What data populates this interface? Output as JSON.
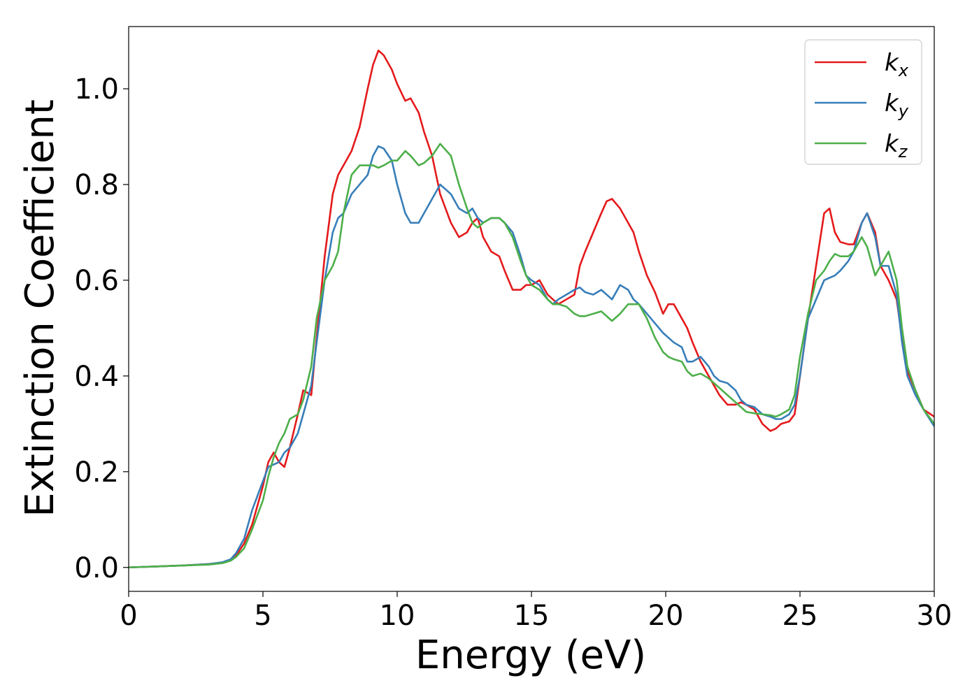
{
  "chart_data": {
    "type": "line",
    "xlabel": "Energy (eV)",
    "ylabel": "Extinction Coefficient",
    "xlim": [
      0,
      30
    ],
    "ylim": [
      -0.05,
      1.13
    ],
    "xticks": [
      0,
      5,
      10,
      15,
      20,
      25,
      30
    ],
    "yticks": [
      0.0,
      0.2,
      0.4,
      0.6,
      0.8,
      1.0
    ],
    "xtick_labels": [
      "0",
      "5",
      "10",
      "15",
      "20",
      "25",
      "30"
    ],
    "ytick_labels": [
      "0.0",
      "0.2",
      "0.4",
      "0.6",
      "0.8",
      "1.0"
    ],
    "grid": false,
    "legend_position": "top-right",
    "series": [
      {
        "name": "k",
        "subscript": "x",
        "color": "#e41a1c",
        "x": [
          0,
          1,
          2,
          3,
          3.5,
          3.8,
          4.0,
          4.3,
          4.6,
          5.0,
          5.2,
          5.4,
          5.6,
          5.8,
          6.0,
          6.3,
          6.5,
          6.8,
          7.0,
          7.3,
          7.6,
          7.8,
          8.0,
          8.3,
          8.6,
          8.9,
          9.1,
          9.3,
          9.5,
          9.8,
          10.0,
          10.3,
          10.5,
          10.8,
          11.0,
          11.3,
          11.6,
          12.0,
          12.3,
          12.6,
          12.8,
          13.0,
          13.2,
          13.5,
          13.8,
          14.0,
          14.3,
          14.6,
          14.8,
          15.0,
          15.3,
          15.6,
          15.8,
          16.0,
          16.3,
          16.6,
          16.8,
          17.0,
          17.3,
          17.6,
          17.8,
          18.0,
          18.3,
          18.6,
          18.8,
          19.0,
          19.3,
          19.6,
          19.9,
          20.1,
          20.3,
          20.6,
          20.8,
          21.0,
          21.3,
          21.6,
          21.8,
          22.0,
          22.3,
          22.6,
          22.8,
          23.0,
          23.3,
          23.6,
          23.9,
          24.1,
          24.3,
          24.6,
          24.8,
          25.0,
          25.3,
          25.6,
          25.9,
          26.1,
          26.3,
          26.5,
          26.8,
          27.0,
          27.3,
          27.5,
          27.8,
          28.0,
          28.3,
          28.6,
          28.8,
          29.0,
          29.3,
          29.6,
          30
        ],
        "y": [
          0,
          0.002,
          0.004,
          0.007,
          0.01,
          0.015,
          0.025,
          0.05,
          0.09,
          0.17,
          0.22,
          0.24,
          0.22,
          0.21,
          0.25,
          0.32,
          0.37,
          0.36,
          0.48,
          0.65,
          0.78,
          0.82,
          0.84,
          0.87,
          0.92,
          1.0,
          1.05,
          1.08,
          1.07,
          1.04,
          1.01,
          0.975,
          0.98,
          0.95,
          0.91,
          0.86,
          0.78,
          0.72,
          0.69,
          0.7,
          0.72,
          0.73,
          0.69,
          0.66,
          0.65,
          0.62,
          0.58,
          0.58,
          0.59,
          0.59,
          0.6,
          0.57,
          0.56,
          0.55,
          0.56,
          0.57,
          0.63,
          0.66,
          0.7,
          0.74,
          0.765,
          0.77,
          0.75,
          0.72,
          0.7,
          0.66,
          0.61,
          0.575,
          0.53,
          0.55,
          0.55,
          0.52,
          0.5,
          0.47,
          0.43,
          0.4,
          0.38,
          0.36,
          0.34,
          0.34,
          0.345,
          0.34,
          0.33,
          0.3,
          0.285,
          0.29,
          0.3,
          0.305,
          0.32,
          0.4,
          0.52,
          0.63,
          0.74,
          0.75,
          0.7,
          0.68,
          0.675,
          0.675,
          0.72,
          0.74,
          0.7,
          0.63,
          0.6,
          0.56,
          0.48,
          0.41,
          0.37,
          0.33,
          0.315
        ]
      },
      {
        "name": "k",
        "subscript": "y",
        "color": "#377eb8",
        "x": [
          0,
          1,
          2,
          3,
          3.5,
          3.8,
          4.0,
          4.3,
          4.6,
          5.0,
          5.2,
          5.4,
          5.6,
          5.8,
          6.0,
          6.3,
          6.5,
          6.8,
          7.0,
          7.3,
          7.6,
          7.8,
          8.0,
          8.3,
          8.6,
          8.9,
          9.1,
          9.3,
          9.5,
          9.8,
          10.0,
          10.3,
          10.5,
          10.8,
          11.0,
          11.3,
          11.6,
          12.0,
          12.3,
          12.6,
          12.8,
          13.0,
          13.2,
          13.5,
          13.8,
          14.0,
          14.3,
          14.6,
          14.8,
          15.0,
          15.3,
          15.6,
          15.8,
          16.0,
          16.3,
          16.6,
          16.8,
          17.0,
          17.3,
          17.6,
          17.8,
          18.0,
          18.3,
          18.6,
          18.8,
          19.0,
          19.3,
          19.6,
          19.9,
          20.1,
          20.3,
          20.6,
          20.8,
          21.0,
          21.3,
          21.6,
          21.8,
          22.0,
          22.3,
          22.6,
          22.8,
          23.0,
          23.3,
          23.6,
          23.9,
          24.1,
          24.3,
          24.6,
          24.8,
          25.0,
          25.3,
          25.6,
          25.9,
          26.1,
          26.3,
          26.5,
          26.8,
          27.0,
          27.3,
          27.5,
          27.8,
          28.0,
          28.3,
          28.6,
          28.8,
          29.0,
          29.3,
          29.6,
          30
        ],
        "y": [
          0,
          0.002,
          0.004,
          0.007,
          0.011,
          0.017,
          0.03,
          0.06,
          0.12,
          0.18,
          0.21,
          0.215,
          0.22,
          0.24,
          0.25,
          0.28,
          0.32,
          0.38,
          0.47,
          0.6,
          0.7,
          0.73,
          0.74,
          0.78,
          0.8,
          0.82,
          0.86,
          0.88,
          0.875,
          0.85,
          0.8,
          0.74,
          0.72,
          0.72,
          0.74,
          0.77,
          0.8,
          0.78,
          0.75,
          0.74,
          0.75,
          0.73,
          0.72,
          0.73,
          0.73,
          0.72,
          0.7,
          0.65,
          0.61,
          0.6,
          0.59,
          0.56,
          0.55,
          0.56,
          0.57,
          0.58,
          0.585,
          0.575,
          0.57,
          0.58,
          0.57,
          0.56,
          0.59,
          0.58,
          0.56,
          0.55,
          0.53,
          0.51,
          0.49,
          0.48,
          0.47,
          0.46,
          0.43,
          0.43,
          0.44,
          0.42,
          0.4,
          0.39,
          0.385,
          0.37,
          0.35,
          0.34,
          0.335,
          0.32,
          0.315,
          0.31,
          0.31,
          0.32,
          0.34,
          0.4,
          0.52,
          0.56,
          0.6,
          0.605,
          0.61,
          0.62,
          0.64,
          0.66,
          0.72,
          0.74,
          0.69,
          0.63,
          0.63,
          0.57,
          0.47,
          0.4,
          0.36,
          0.33,
          0.295
        ]
      },
      {
        "name": "k",
        "subscript": "z",
        "color": "#4daf4a",
        "x": [
          0,
          1,
          2,
          3,
          3.5,
          3.8,
          4.0,
          4.3,
          4.6,
          5.0,
          5.2,
          5.4,
          5.6,
          5.8,
          6.0,
          6.3,
          6.5,
          6.8,
          7.0,
          7.3,
          7.6,
          7.8,
          8.0,
          8.3,
          8.6,
          8.9,
          9.1,
          9.3,
          9.5,
          9.8,
          10.0,
          10.3,
          10.5,
          10.8,
          11.0,
          11.3,
          11.6,
          12.0,
          12.3,
          12.6,
          12.8,
          13.0,
          13.2,
          13.5,
          13.8,
          14.0,
          14.3,
          14.6,
          14.8,
          15.0,
          15.3,
          15.6,
          15.8,
          16.0,
          16.3,
          16.6,
          16.8,
          17.0,
          17.3,
          17.6,
          17.8,
          18.0,
          18.3,
          18.6,
          18.8,
          19.0,
          19.3,
          19.6,
          19.9,
          20.1,
          20.3,
          20.6,
          20.8,
          21.0,
          21.3,
          21.6,
          21.8,
          22.0,
          22.3,
          22.6,
          22.8,
          23.0,
          23.3,
          23.6,
          23.9,
          24.1,
          24.3,
          24.6,
          24.8,
          25.0,
          25.3,
          25.6,
          25.9,
          26.1,
          26.3,
          26.5,
          26.8,
          27.0,
          27.3,
          27.5,
          27.8,
          28.0,
          28.3,
          28.6,
          28.8,
          29.0,
          29.3,
          29.6,
          30
        ],
        "y": [
          0,
          0.002,
          0.004,
          0.006,
          0.009,
          0.014,
          0.022,
          0.04,
          0.08,
          0.14,
          0.19,
          0.23,
          0.26,
          0.28,
          0.31,
          0.32,
          0.35,
          0.42,
          0.52,
          0.6,
          0.63,
          0.66,
          0.74,
          0.82,
          0.84,
          0.84,
          0.84,
          0.835,
          0.84,
          0.85,
          0.85,
          0.87,
          0.86,
          0.84,
          0.845,
          0.86,
          0.885,
          0.86,
          0.8,
          0.75,
          0.72,
          0.71,
          0.72,
          0.73,
          0.73,
          0.72,
          0.69,
          0.64,
          0.61,
          0.59,
          0.58,
          0.56,
          0.55,
          0.55,
          0.545,
          0.53,
          0.525,
          0.525,
          0.53,
          0.535,
          0.525,
          0.515,
          0.53,
          0.55,
          0.55,
          0.55,
          0.52,
          0.48,
          0.45,
          0.44,
          0.435,
          0.43,
          0.41,
          0.4,
          0.405,
          0.395,
          0.385,
          0.375,
          0.36,
          0.345,
          0.335,
          0.325,
          0.322,
          0.32,
          0.318,
          0.315,
          0.32,
          0.33,
          0.36,
          0.44,
          0.53,
          0.6,
          0.62,
          0.64,
          0.655,
          0.65,
          0.65,
          0.66,
          0.69,
          0.67,
          0.61,
          0.63,
          0.66,
          0.6,
          0.5,
          0.42,
          0.37,
          0.33,
          0.3
        ]
      }
    ]
  }
}
